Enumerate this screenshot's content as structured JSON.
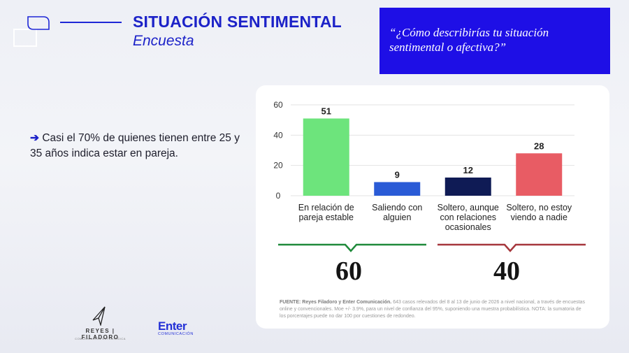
{
  "header": {
    "title": "SITUACIÓN SENTIMENTAL",
    "subtitle": "Encuesta"
  },
  "question": "“¿Cómo describirías tu situación sentimental o afectiva?”",
  "bullet": {
    "arrow": "➔",
    "text": "Casi el 70% de quienes tienen entre 25 y 35 años indica estar en pareja."
  },
  "chart_data": {
    "type": "bar",
    "categories": [
      "En relación de pareja estable",
      "Saliendo con alguien",
      "Soltero, aunque con relaciones ocasionales",
      "Soltero, no estoy viendo a nadie"
    ],
    "values": [
      51,
      9,
      12,
      28
    ],
    "colors": [
      "#6de47c",
      "#2a5bd6",
      "#0f1b55",
      "#e85c64"
    ],
    "ylim": [
      0,
      60
    ],
    "yticks": [
      0,
      20,
      40,
      60
    ],
    "grid": true,
    "title": "",
    "xlabel": "",
    "ylabel": ""
  },
  "totals": [
    {
      "value": "60",
      "color": "#1f8a3a"
    },
    {
      "value": "40",
      "color": "#a6373c"
    }
  ],
  "source": {
    "label": "FUENTE: Reyes Filadoro y Enter Comunicación.",
    "text": " 643 casos relevados del 8 al 13 de junio de 2026 a nivel nacional, a través de encuestas online y convencionales. Moe +/- 3.9%, para un nivel de confianza del 95%, suponiendo una muestra probabilística. NOTA: la sumatoria de los porcentajes puede no dar 100 por cuestiones de redondeo."
  },
  "footer": {
    "logo1_name": "REYES | FILADORO",
    "logo1_sub": "COMUNICACIÓN ESTRATÉGICA",
    "logo2_name": "Enter",
    "logo2_sub": "COMUNICACIÓN"
  }
}
